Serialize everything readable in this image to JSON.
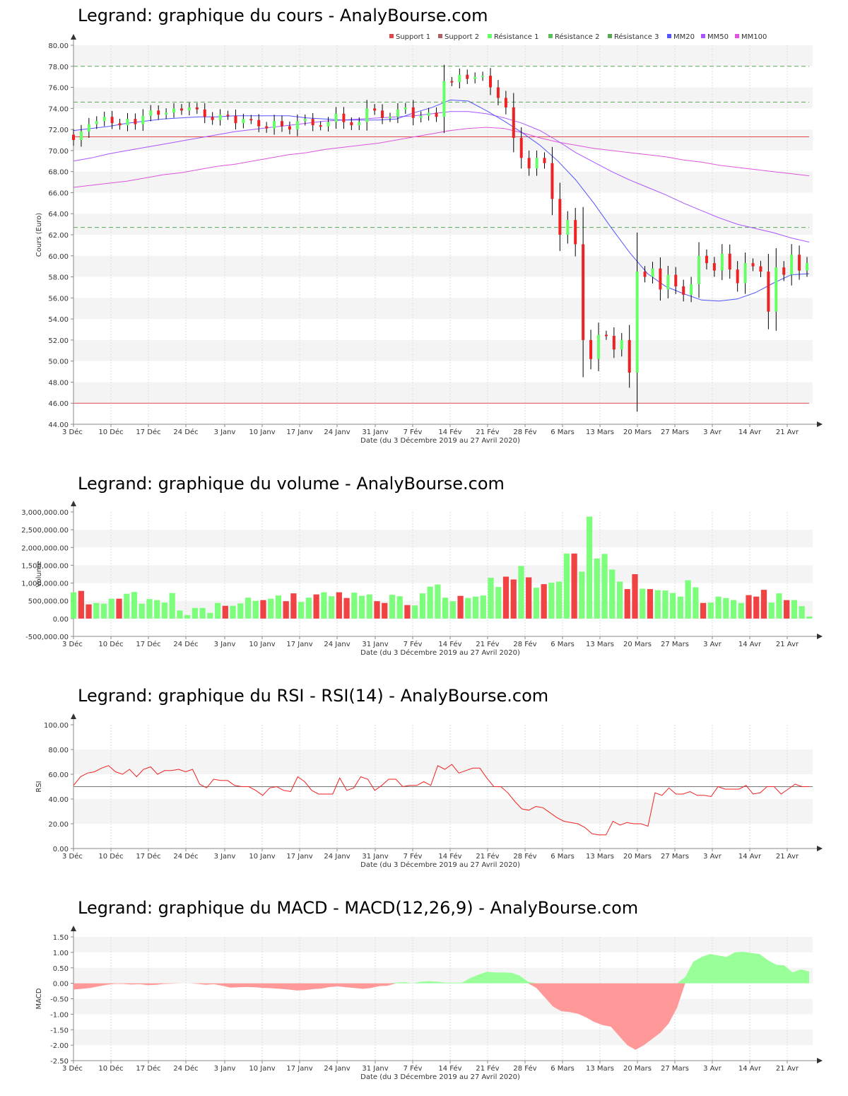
{
  "x_date_labels": [
    "3 Déc",
    "10 Déc",
    "17 Déc",
    "24 Déc",
    "3 Janv",
    "10 Janv",
    "17 Janv",
    "24 Janv",
    "31 Janv",
    "7 Fév",
    "14 Fév",
    "21 Fév",
    "28 Fév",
    "6 Mars",
    "13 Mars",
    "20 Mars",
    "27 Mars",
    "3 Avr",
    "14 Avr",
    "21 Avr"
  ],
  "x_caption": "Date (du 3 Décembre 2019 au 27 Avril 2020)",
  "colors": {
    "up": "#66ff66",
    "down": "#ee2222",
    "support": "#e04848",
    "resistance": "#55aa55",
    "mm20": "#5555ff",
    "mm50": "#aa55ff",
    "mm100": "#dd55dd"
  },
  "chart_data": [
    {
      "type": "candlestick",
      "title": "Legrand: graphique du cours - AnalyBourse.com",
      "ylabel": "Cours (Euro)",
      "xlabel": "Date (du 3 Décembre 2019 au 27 Avril 2020)",
      "ylim": [
        44,
        80
      ],
      "yticks": [
        "44.00",
        "46.00",
        "48.00",
        "50.00",
        "52.00",
        "54.00",
        "56.00",
        "58.00",
        "60.00",
        "62.00",
        "64.00",
        "66.00",
        "68.00",
        "70.00",
        "72.00",
        "74.00",
        "76.00",
        "78.00",
        "80.00"
      ],
      "legend": [
        "Support 1",
        "Support 2",
        "Résistance 1",
        "Résistance 2",
        "Résistance 3",
        "MM20",
        "MM50",
        "MM100"
      ],
      "legend_placement": "top-right",
      "levels": {
        "support1": 71.3,
        "support2": 46.0,
        "resistance1": 78.0,
        "resistance2": 74.6,
        "resistance3": 62.7
      },
      "closes": [
        71.0,
        71.8,
        72.5,
        72.8,
        73.2,
        72.6,
        72.4,
        73.0,
        72.5,
        73.3,
        73.8,
        73.4,
        73.6,
        74.0,
        73.8,
        74.1,
        73.9,
        73.2,
        72.9,
        73.4,
        73.3,
        72.6,
        73.0,
        72.9,
        72.3,
        72.1,
        72.8,
        72.3,
        72.0,
        72.8,
        73.0,
        72.4,
        72.3,
        72.7,
        73.5,
        72.7,
        72.4,
        72.7,
        74.0,
        73.8,
        73.1,
        73.2,
        73.9,
        74.1,
        73.1,
        73.3,
        73.6,
        73.2,
        76.6,
        76.5,
        77.2,
        76.8,
        77.0,
        77.1,
        76.0,
        75.0,
        74.1,
        71.2,
        69.3,
        68.3,
        69.3,
        68.8,
        65.4,
        62.0,
        63.4,
        61.1,
        52.0,
        50.2,
        52.5,
        52.4,
        51.1,
        52.0,
        48.9,
        58.5,
        58.0,
        58.8,
        56.8,
        58.2,
        57.1,
        56.3,
        57.3,
        60.0,
        59.3,
        58.6,
        60.2,
        58.7,
        57.4,
        59.3,
        59.0,
        58.5,
        54.7,
        58.9,
        58.2,
        60.1,
        58.6,
        59.3
      ],
      "mm20": [
        71.9,
        72.1,
        72.3,
        72.6,
        72.8,
        73.0,
        73.1,
        73.2,
        73.2,
        73.3,
        73.3,
        73.3,
        73.3,
        73.1,
        73.0,
        72.9,
        72.9,
        72.9,
        73.0,
        73.6,
        74.1,
        74.8,
        74.7,
        73.8,
        72.8,
        71.7,
        70.5,
        69.0,
        67.2,
        65.0,
        62.6,
        60.3,
        58.3,
        57.1,
        56.4,
        55.8,
        55.7,
        55.9,
        56.5,
        57.4,
        58.2,
        58.3
      ],
      "mm50": [
        69.0,
        69.3,
        69.7,
        70.0,
        70.3,
        70.6,
        70.9,
        71.2,
        71.5,
        71.8,
        72.0,
        72.2,
        72.4,
        72.6,
        72.8,
        72.9,
        73.0,
        73.1,
        73.2,
        73.3,
        73.5,
        73.7,
        73.7,
        73.5,
        73.1,
        72.6,
        71.9,
        70.9,
        69.8,
        68.9,
        68.0,
        67.2,
        66.5,
        65.8,
        65.0,
        64.3,
        63.6,
        63.0,
        62.6,
        62.2,
        61.7,
        61.3
      ],
      "mm100": [
        66.5,
        66.7,
        66.9,
        67.1,
        67.4,
        67.7,
        67.9,
        68.2,
        68.5,
        68.7,
        69.0,
        69.3,
        69.6,
        69.8,
        70.1,
        70.3,
        70.5,
        70.7,
        71.0,
        71.3,
        71.6,
        71.9,
        72.1,
        72.2,
        72.1,
        71.7,
        71.2,
        70.8,
        70.5,
        70.2,
        70.0,
        69.8,
        69.6,
        69.4,
        69.1,
        68.9,
        68.6,
        68.4,
        68.2,
        68.0,
        67.8,
        67.6
      ]
    },
    {
      "type": "bar",
      "title": "Legrand: graphique du volume - AnalyBourse.com",
      "ylabel": "Volume",
      "xlabel": "Date (du 3 Décembre 2019 au 27 Avril 2020)",
      "ylim": [
        -500000,
        3000000
      ],
      "yticks": [
        "-500,000.00",
        "0.00",
        "500,000.00",
        "1,000,000.00",
        "1,500,000.00",
        "2,000,000.00",
        "2,500,000.00",
        "3,000,000.00"
      ],
      "values": [
        740000,
        780000,
        400000,
        440000,
        420000,
        560000,
        560000,
        700000,
        750000,
        420000,
        550000,
        520000,
        450000,
        720000,
        230000,
        100000,
        300000,
        300000,
        160000,
        440000,
        360000,
        360000,
        430000,
        590000,
        500000,
        520000,
        560000,
        650000,
        490000,
        710000,
        470000,
        590000,
        680000,
        740000,
        630000,
        740000,
        580000,
        730000,
        640000,
        680000,
        490000,
        440000,
        670000,
        630000,
        380000,
        370000,
        710000,
        900000,
        960000,
        590000,
        490000,
        640000,
        580000,
        620000,
        650000,
        1150000,
        890000,
        1180000,
        1100000,
        1480000,
        1160000,
        870000,
        970000,
        1010000,
        1040000,
        1830000,
        1830000,
        1320000,
        2870000,
        1690000,
        1820000,
        1380000,
        1040000,
        830000,
        1250000,
        840000,
        830000,
        800000,
        790000,
        720000,
        620000,
        1080000,
        880000,
        440000,
        450000,
        620000,
        580000,
        520000,
        440000,
        660000,
        620000,
        810000,
        450000,
        710000,
        520000,
        520000,
        350000,
        60000
      ]
    },
    {
      "type": "line",
      "title": "Legrand: graphique du RSI - RSI(14) - AnalyBourse.com",
      "ylabel": "RSI",
      "xlabel": "Date (du 3 Décembre 2019 au 27 Avril 2020)",
      "ylim": [
        0,
        100
      ],
      "yticks": [
        "0.00",
        "20.00",
        "40.00",
        "60.00",
        "80.00",
        "100.00"
      ],
      "reference_line": 50,
      "values": [
        51,
        58,
        61,
        62,
        65,
        67,
        62,
        60,
        64,
        58,
        64,
        66,
        60,
        63,
        63,
        64,
        62,
        64,
        52,
        49,
        56,
        55,
        55,
        51,
        50,
        50,
        47,
        43,
        49,
        50,
        47,
        46,
        58,
        54,
        47,
        44,
        44,
        44,
        57,
        47,
        49,
        58,
        56,
        47,
        51,
        56,
        56,
        50,
        51,
        51,
        54,
        51,
        67,
        64,
        68,
        61,
        63,
        65,
        65,
        57,
        50,
        50,
        45,
        38,
        32,
        31,
        34,
        33,
        29,
        25,
        22,
        21,
        20,
        17,
        12,
        11,
        11,
        22,
        19,
        21,
        20,
        20,
        18,
        45,
        43,
        49,
        44,
        44,
        46,
        43,
        43,
        42,
        50,
        48,
        48,
        48,
        51,
        44,
        45,
        50,
        50,
        44,
        48,
        52,
        50,
        50
      ]
    },
    {
      "type": "area",
      "title": "Legrand: graphique du MACD - MACD(12,26,9) - AnalyBourse.com",
      "ylabel": "MACD",
      "xlabel": "Date (du 3 Décembre 2019 au 27 Avril 2020)",
      "ylim": [
        -2.5,
        1.5
      ],
      "yticks": [
        "-2.50",
        "-2.00",
        "-1.50",
        "-1.00",
        "-0.50",
        "0.00",
        "0.50",
        "1.00",
        "1.50"
      ],
      "values": [
        -0.2,
        -0.18,
        -0.15,
        -0.1,
        -0.05,
        -0.02,
        -0.02,
        -0.04,
        -0.03,
        -0.06,
        -0.05,
        -0.02,
        -0.01,
        0.0,
        0.0,
        -0.02,
        -0.05,
        -0.03,
        -0.08,
        -0.14,
        -0.13,
        -0.12,
        -0.13,
        -0.15,
        -0.16,
        -0.18,
        -0.2,
        -0.23,
        -0.22,
        -0.19,
        -0.17,
        -0.12,
        -0.1,
        -0.13,
        -0.15,
        -0.18,
        -0.15,
        -0.09,
        -0.08,
        0.02,
        0.04,
        0.0,
        0.05,
        0.07,
        0.05,
        0.02,
        0.02,
        0.02,
        0.17,
        0.28,
        0.37,
        0.35,
        0.35,
        0.34,
        0.25,
        0.05,
        -0.15,
        -0.45,
        -0.75,
        -0.9,
        -0.93,
        -0.98,
        -1.1,
        -1.25,
        -1.35,
        -1.4,
        -1.7,
        -2.0,
        -2.15,
        -2.0,
        -1.8,
        -1.6,
        -1.3,
        -0.8,
        0.2,
        0.7,
        0.85,
        0.95,
        0.9,
        0.85,
        1.0,
        1.02,
        0.98,
        0.95,
        0.75,
        0.6,
        0.58,
        0.35,
        0.45,
        0.38
      ]
    }
  ]
}
